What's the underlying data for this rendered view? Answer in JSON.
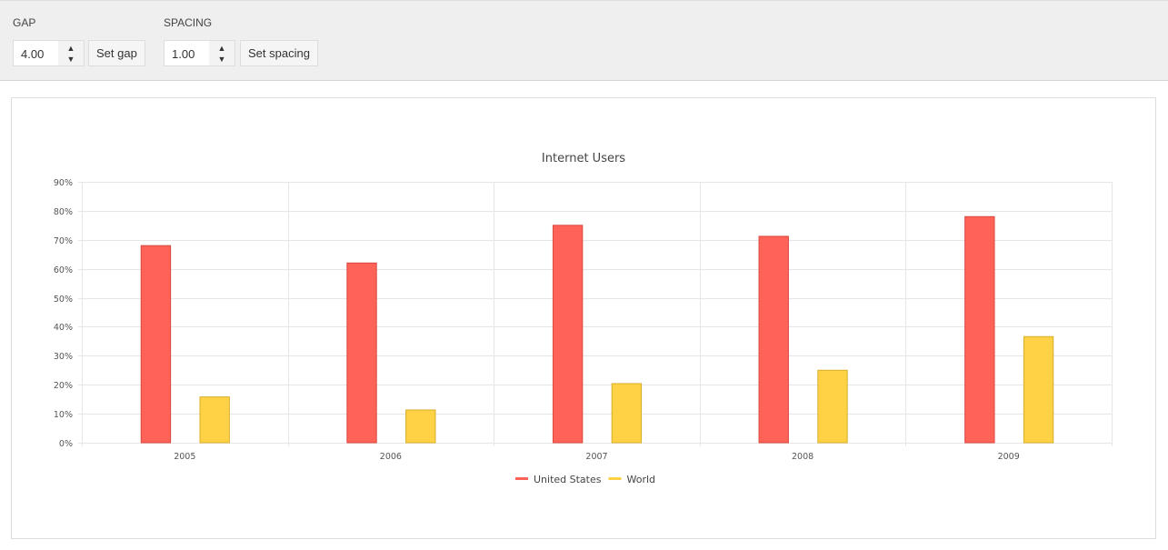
{
  "controls": {
    "gap": {
      "label": "GAP",
      "value": "4.00",
      "button": "Set gap"
    },
    "spacing": {
      "label": "SPACING",
      "value": "1.00",
      "button": "Set spacing"
    }
  },
  "chart_data": {
    "type": "bar",
    "title": "Internet Users",
    "categories": [
      "2005",
      "2006",
      "2007",
      "2008",
      "2009"
    ],
    "series": [
      {
        "name": "United States",
        "color": "#ff6358",
        "values": [
          68,
          62,
          75,
          71.2,
          78
        ]
      },
      {
        "name": "World",
        "color": "#ffd246",
        "values": [
          15.8,
          11.3,
          20.4,
          25,
          36.6
        ]
      }
    ],
    "ylim": [
      0,
      90
    ],
    "yticks": [
      "0%",
      "10%",
      "20%",
      "30%",
      "40%",
      "50%",
      "60%",
      "70%",
      "80%",
      "90%"
    ],
    "grid": true,
    "legend": "bottom"
  }
}
